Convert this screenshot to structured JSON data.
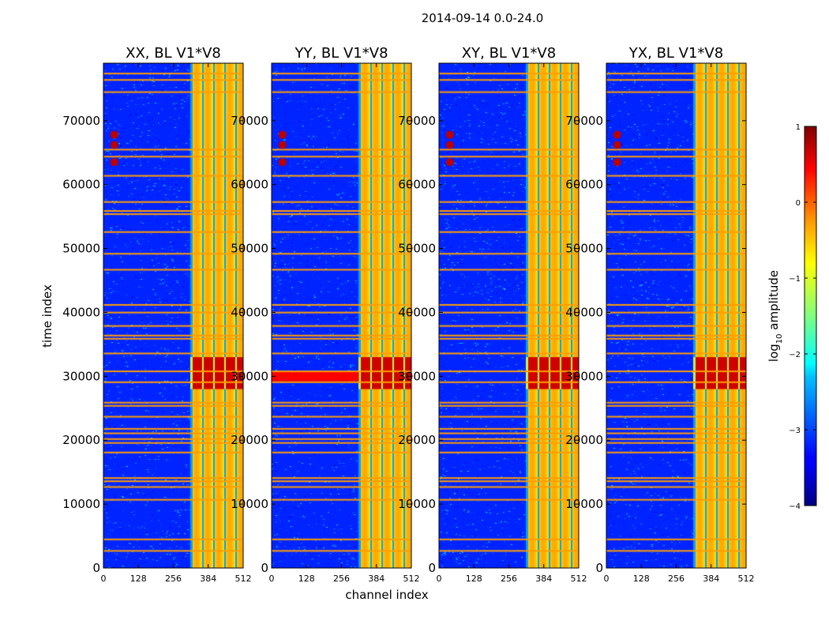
{
  "figure_title": "2014-09-14 0.0-24.0",
  "chart_data": {
    "type": "heatmap",
    "title": "2014-09-14 0.0-24.0",
    "xlabel": "channel index",
    "ylabel": "time index",
    "xlim": [
      0,
      512
    ],
    "ylim": [
      0,
      79000
    ],
    "x_ticks": [
      0,
      128,
      256,
      384,
      512
    ],
    "y_ticks": [
      0,
      10000,
      20000,
      30000,
      40000,
      50000,
      60000,
      70000
    ],
    "colorscale": "jet",
    "colorbar": {
      "label": "log10 amplitude",
      "label_main": "log",
      "label_sub": "10",
      "label_tail": " amplitude",
      "range": [
        -4,
        1
      ],
      "ticks": [
        "1",
        "0",
        "−1",
        "−2",
        "−3",
        "−4"
      ],
      "tick_values": [
        1,
        0,
        -1,
        -2,
        -3,
        -4
      ]
    },
    "panels": [
      {
        "title": "XX, BL V1*V8",
        "polarization": "XX"
      },
      {
        "title": "YY, BL V1*V8",
        "polarization": "YY"
      },
      {
        "title": "XY, BL V1*V8",
        "polarization": "XY"
      },
      {
        "title": "YX, BL V1*V8",
        "polarization": "YX"
      }
    ],
    "features": {
      "background_level": -3.2,
      "bright_channel_band": [
        320,
        512
      ],
      "flagged_time_rows": [
        2800,
        4600,
        10800,
        12800,
        13700,
        14200,
        18200,
        19700,
        20300,
        21200,
        21900,
        23800,
        25500,
        26000,
        29200,
        30900,
        33700,
        36000,
        36500,
        38000,
        40100,
        41300,
        46800,
        49300,
        52700,
        55500,
        56000,
        57400,
        61500,
        64500,
        65600,
        74600,
        76500,
        77500
      ],
      "rfi_burst_times": [
        63500,
        66200,
        67800
      ],
      "high_amplitude_time_range": [
        28000,
        33000
      ]
    }
  }
}
